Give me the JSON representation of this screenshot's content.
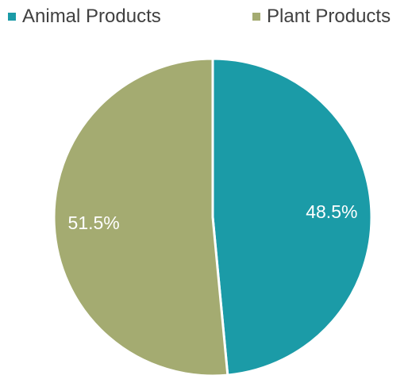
{
  "chart_data": {
    "type": "pie",
    "categories": [
      "Animal Products",
      "Plant Products"
    ],
    "values": [
      48.5,
      51.5
    ],
    "data_labels": [
      "48.5%",
      "51.5%"
    ],
    "colors": [
      "#1b9ba7",
      "#a4ab71"
    ],
    "start_angle": "12 o'clock, clockwise",
    "legend": "top",
    "title": ""
  },
  "legend": {
    "items": [
      {
        "label": "Animal Products",
        "color": "#1b9ba7"
      },
      {
        "label": "Plant Products",
        "color": "#a4ab71"
      }
    ]
  }
}
